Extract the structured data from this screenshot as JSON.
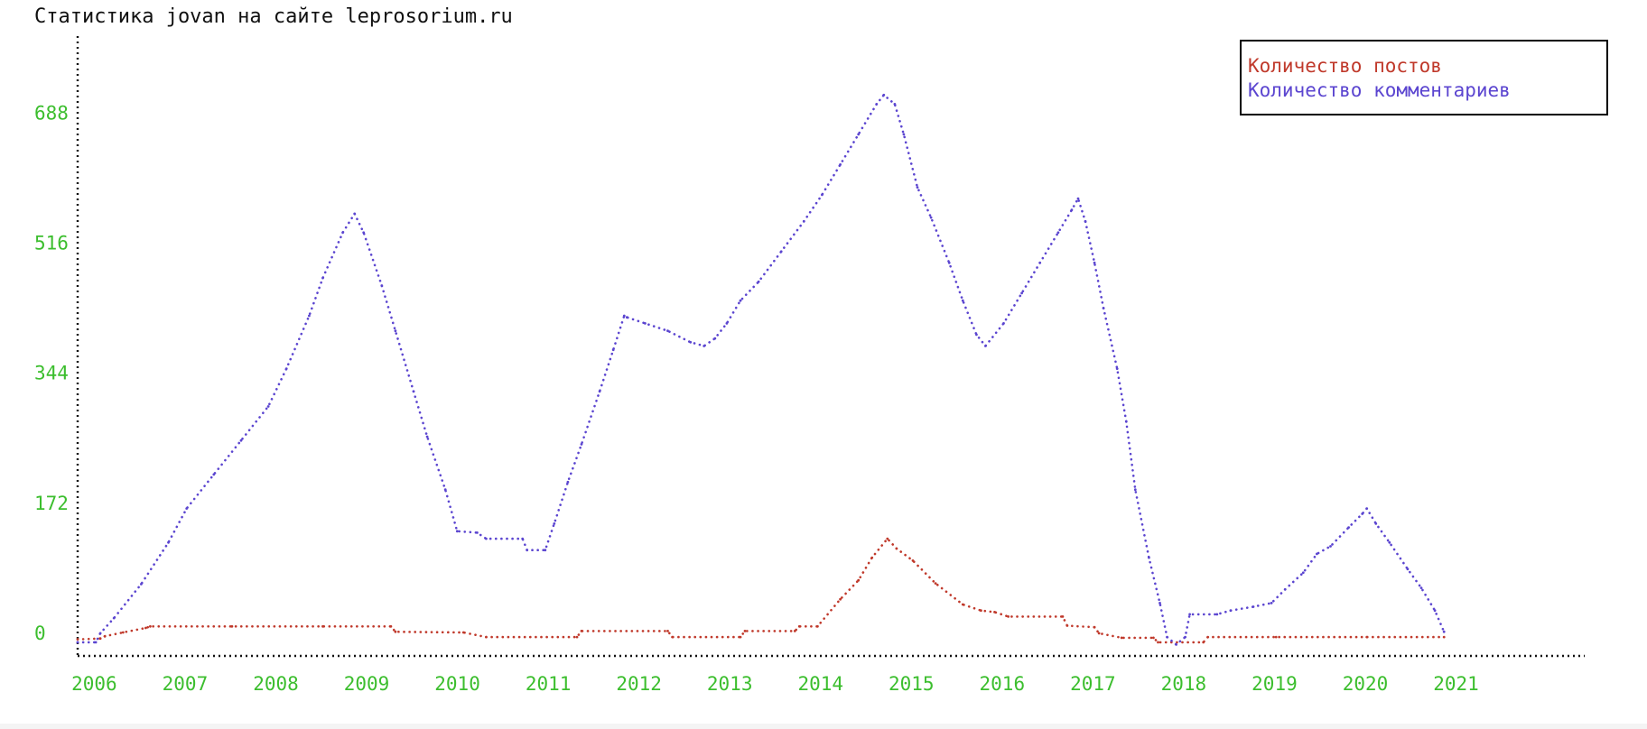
{
  "chart_data": {
    "type": "line",
    "title": "Статистика jovan на сайте leprosorium.ru",
    "x_unit": "year (decimal)",
    "x_ticks": [
      "2006",
      "2007",
      "2008",
      "2009",
      "2010",
      "2011",
      "2012",
      "2013",
      "2014",
      "2015",
      "2016",
      "2017",
      "2018",
      "2019",
      "2020",
      "2021"
    ],
    "y_ticks": [
      "0",
      "172",
      "344",
      "516",
      "688"
    ],
    "xlim": [
      2005.8,
      2022.4
    ],
    "ylim": [
      -30,
      790
    ],
    "grid": false,
    "legend_position": "top-right",
    "colors": {
      "axis": "#111111",
      "tick_label": "#3cbe2e",
      "title": "#111111"
    },
    "series": [
      {
        "name": "Количество постов",
        "color": "#c0392b",
        "points": [
          [
            2005.8,
            -8
          ],
          [
            2006.05,
            -7
          ],
          [
            2006.1,
            -4
          ],
          [
            2006.3,
            1
          ],
          [
            2006.55,
            7
          ],
          [
            2006.6,
            9
          ],
          [
            2007.5,
            9
          ],
          [
            2008.5,
            9
          ],
          [
            2009.25,
            9
          ],
          [
            2009.3,
            2
          ],
          [
            2010.05,
            1
          ],
          [
            2010.3,
            -5
          ],
          [
            2011.3,
            -5
          ],
          [
            2011.35,
            3
          ],
          [
            2012.3,
            3
          ],
          [
            2012.35,
            -5
          ],
          [
            2013.1,
            -5
          ],
          [
            2013.15,
            3
          ],
          [
            2013.7,
            3
          ],
          [
            2013.75,
            9
          ],
          [
            2013.95,
            9
          ],
          [
            2014.2,
            45
          ],
          [
            2014.4,
            70
          ],
          [
            2014.55,
            100
          ],
          [
            2014.72,
            125
          ],
          [
            2014.82,
            112
          ],
          [
            2015.0,
            96
          ],
          [
            2015.25,
            66
          ],
          [
            2015.55,
            38
          ],
          [
            2015.75,
            30
          ],
          [
            2015.9,
            28
          ],
          [
            2016.05,
            22
          ],
          [
            2016.65,
            22
          ],
          [
            2016.7,
            10
          ],
          [
            2017.0,
            8
          ],
          [
            2017.05,
            0
          ],
          [
            2017.3,
            -6
          ],
          [
            2017.65,
            -6
          ],
          [
            2017.7,
            -12
          ],
          [
            2018.2,
            -12
          ],
          [
            2018.25,
            -5
          ],
          [
            2019.0,
            -5
          ],
          [
            2020.0,
            -5
          ],
          [
            2020.85,
            -5
          ]
        ]
      },
      {
        "name": "Количество комментариев",
        "color": "#5b45d0",
        "points": [
          [
            2005.8,
            -12
          ],
          [
            2006.0,
            -12
          ],
          [
            2006.05,
            0
          ],
          [
            2006.2,
            20
          ],
          [
            2006.5,
            65
          ],
          [
            2006.8,
            120
          ],
          [
            2007.0,
            165
          ],
          [
            2007.3,
            210
          ],
          [
            2007.6,
            255
          ],
          [
            2007.9,
            300
          ],
          [
            2008.1,
            350
          ],
          [
            2008.35,
            420
          ],
          [
            2008.5,
            470
          ],
          [
            2008.72,
            530
          ],
          [
            2008.85,
            555
          ],
          [
            2008.95,
            530
          ],
          [
            2009.15,
            460
          ],
          [
            2009.3,
            400
          ],
          [
            2009.5,
            320
          ],
          [
            2009.65,
            260
          ],
          [
            2009.85,
            190
          ],
          [
            2009.98,
            135
          ],
          [
            2010.2,
            133
          ],
          [
            2010.3,
            125
          ],
          [
            2010.7,
            125
          ],
          [
            2010.75,
            110
          ],
          [
            2010.95,
            110
          ],
          [
            2011.05,
            145
          ],
          [
            2011.2,
            200
          ],
          [
            2011.35,
            250
          ],
          [
            2011.55,
            320
          ],
          [
            2011.7,
            375
          ],
          [
            2011.82,
            420
          ],
          [
            2011.85,
            418
          ],
          [
            2012.05,
            410
          ],
          [
            2012.3,
            400
          ],
          [
            2012.55,
            385
          ],
          [
            2012.7,
            380
          ],
          [
            2012.82,
            390
          ],
          [
            2012.95,
            410
          ],
          [
            2013.1,
            440
          ],
          [
            2013.3,
            465
          ],
          [
            2013.55,
            505
          ],
          [
            2013.8,
            545
          ],
          [
            2014.0,
            580
          ],
          [
            2014.2,
            620
          ],
          [
            2014.4,
            660
          ],
          [
            2014.6,
            700
          ],
          [
            2014.68,
            712
          ],
          [
            2014.8,
            700
          ],
          [
            2014.9,
            660
          ],
          [
            2015.05,
            590
          ],
          [
            2015.2,
            550
          ],
          [
            2015.4,
            490
          ],
          [
            2015.55,
            440
          ],
          [
            2015.7,
            395
          ],
          [
            2015.8,
            380
          ],
          [
            2016.0,
            410
          ],
          [
            2016.2,
            450
          ],
          [
            2016.4,
            490
          ],
          [
            2016.6,
            530
          ],
          [
            2016.75,
            560
          ],
          [
            2016.82,
            575
          ],
          [
            2016.9,
            545
          ],
          [
            2017.0,
            490
          ],
          [
            2017.1,
            430
          ],
          [
            2017.25,
            350
          ],
          [
            2017.35,
            280
          ],
          [
            2017.45,
            190
          ],
          [
            2017.6,
            100
          ],
          [
            2017.72,
            40
          ],
          [
            2017.8,
            -5
          ],
          [
            2017.9,
            -15
          ],
          [
            2018.0,
            -5
          ],
          [
            2018.05,
            25
          ],
          [
            2018.35,
            25
          ],
          [
            2018.5,
            30
          ],
          [
            2018.75,
            35
          ],
          [
            2018.95,
            40
          ],
          [
            2019.1,
            58
          ],
          [
            2019.3,
            80
          ],
          [
            2019.45,
            105
          ],
          [
            2019.6,
            115
          ],
          [
            2019.8,
            140
          ],
          [
            2019.95,
            158
          ],
          [
            2020.0,
            165
          ],
          [
            2020.1,
            145
          ],
          [
            2020.25,
            120
          ],
          [
            2020.45,
            85
          ],
          [
            2020.6,
            60
          ],
          [
            2020.75,
            30
          ],
          [
            2020.85,
            2
          ]
        ]
      }
    ]
  }
}
